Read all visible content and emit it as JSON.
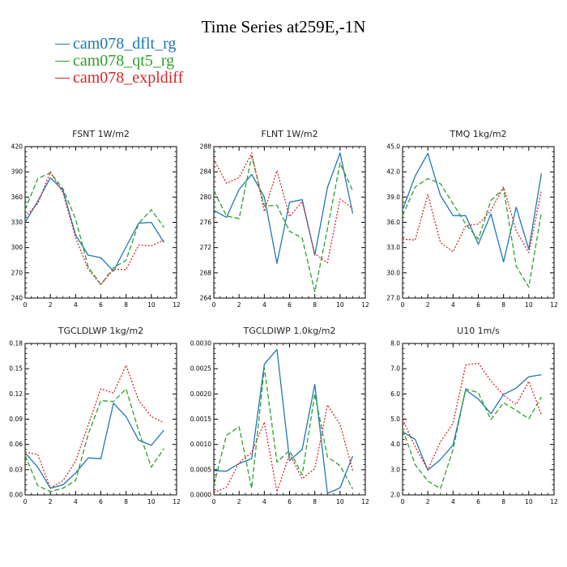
{
  "title": "Time Series at259E,-1N",
  "legend": [
    {
      "label": "cam078_dflt_rg",
      "color": "#1f77b4",
      "dash": "none"
    },
    {
      "label": "cam078_qt5_rg",
      "color": "#2ca02c",
      "dash": "dashed"
    },
    {
      "label": "cam078_expldiff",
      "color": "#d62728",
      "dash": "dotted"
    }
  ],
  "chart_data": [
    {
      "type": "line",
      "title": "FSNT   1W/m2",
      "x": [
        0,
        1,
        2,
        3,
        4,
        5,
        6,
        7,
        8,
        9,
        10,
        11
      ],
      "xlim": [
        0,
        12
      ],
      "xticks": [
        "0",
        "2",
        "4",
        "6",
        "8",
        "10",
        "12"
      ],
      "ylim": [
        240,
        420
      ],
      "yticks": [
        "240",
        "270",
        "300",
        "330",
        "360",
        "390",
        "420"
      ],
      "series": [
        {
          "name": "cam078_dflt_rg",
          "values": [
            330,
            355,
            383,
            368,
            315,
            291,
            288,
            272,
            301,
            329,
            330,
            306
          ]
        },
        {
          "name": "cam078_qt5_rg",
          "values": [
            345,
            382,
            389,
            370,
            334,
            277,
            256,
            276,
            285,
            329,
            345,
            324
          ]
        },
        {
          "name": "cam078_expldiff",
          "values": [
            337,
            352,
            390,
            365,
            312,
            274,
            256,
            274,
            274,
            303,
            302,
            309
          ]
        }
      ]
    },
    {
      "type": "line",
      "title": "FLNT   1W/m2",
      "x": [
        0,
        1,
        2,
        3,
        4,
        5,
        6,
        7,
        8,
        9,
        10,
        11
      ],
      "xlim": [
        0,
        12
      ],
      "xticks": [
        "0",
        "2",
        "4",
        "6",
        "8",
        "10",
        "12"
      ],
      "ylim": [
        264,
        288
      ],
      "yticks": [
        "264",
        "268",
        "272",
        "276",
        "280",
        "284",
        "288"
      ],
      "series": [
        {
          "name": "cam078_dflt_rg",
          "values": [
            277.9,
            276.8,
            281.2,
            283.6,
            280.0,
            269.5,
            279.2,
            279.6,
            270.8,
            281.5,
            287.0,
            277.4
          ]
        },
        {
          "name": "cam078_qt5_rg",
          "values": [
            281.0,
            277.0,
            276.6,
            286.5,
            278.6,
            278.7,
            274.6,
            273.5,
            265.0,
            275.0,
            285.4,
            281.0
          ]
        },
        {
          "name": "cam078_expldiff",
          "values": [
            286.0,
            282.2,
            283.1,
            287.0,
            277.7,
            284.2,
            276.9,
            279.3,
            271.0,
            269.6,
            279.7,
            278.2
          ]
        }
      ]
    },
    {
      "type": "line",
      "title": "TMQ   1kg/m2",
      "x": [
        0,
        1,
        2,
        3,
        4,
        5,
        6,
        7,
        8,
        9,
        10,
        11
      ],
      "xlim": [
        0,
        12
      ],
      "xticks": [
        "0",
        "2",
        "4",
        "6",
        "8",
        "10",
        "12"
      ],
      "ylim": [
        27.0,
        45.0
      ],
      "yticks": [
        "27.0",
        "30.0",
        "33.0",
        "36.0",
        "39.0",
        "42.0",
        "45.0"
      ],
      "series": [
        {
          "name": "cam078_dflt_rg",
          "values": [
            37.5,
            41.5,
            44.2,
            39.2,
            36.8,
            36.8,
            33.4,
            37.0,
            31.3,
            37.8,
            32.8,
            41.8
          ]
        },
        {
          "name": "cam078_qt5_rg",
          "values": [
            36.8,
            40.2,
            41.2,
            40.6,
            38.2,
            35.8,
            34.0,
            38.6,
            40.0,
            30.8,
            28.3,
            37.2
          ]
        },
        {
          "name": "cam078_expldiff",
          "values": [
            34.0,
            33.9,
            39.3,
            33.6,
            32.5,
            35.6,
            35.8,
            37.4,
            40.2,
            35.0,
            32.4,
            39.8
          ]
        }
      ]
    },
    {
      "type": "line",
      "title": "TGCLDLWP   1kg/m2",
      "x": [
        0,
        1,
        2,
        3,
        4,
        5,
        6,
        7,
        8,
        9,
        10,
        11
      ],
      "xlim": [
        0,
        12
      ],
      "xticks": [
        "0",
        "2",
        "4",
        "6",
        "8",
        "10",
        "12"
      ],
      "ylim": [
        0.0,
        0.18
      ],
      "yticks": [
        "0.00",
        "0.03",
        "0.06",
        "0.09",
        "0.12",
        "0.15",
        "0.18"
      ],
      "series": [
        {
          "name": "cam078_dflt_rg",
          "values": [
            0.05,
            0.033,
            0.008,
            0.012,
            0.026,
            0.044,
            0.043,
            0.109,
            0.093,
            0.065,
            0.059,
            0.077
          ]
        },
        {
          "name": "cam078_qt5_rg",
          "values": [
            0.047,
            0.011,
            0.004,
            0.008,
            0.017,
            0.072,
            0.112,
            0.111,
            0.126,
            0.076,
            0.033,
            0.055
          ]
        },
        {
          "name": "cam078_expldiff",
          "values": [
            0.051,
            0.048,
            0.008,
            0.017,
            0.04,
            0.083,
            0.126,
            0.121,
            0.154,
            0.112,
            0.093,
            0.086
          ]
        }
      ]
    },
    {
      "type": "line",
      "title": "TGCLDIWP   1.0kg/m2",
      "x": [
        0,
        1,
        2,
        3,
        4,
        5,
        6,
        7,
        8,
        9,
        10,
        11
      ],
      "xlim": [
        0,
        12
      ],
      "xticks": [
        "0",
        "2",
        "4",
        "6",
        "8",
        "10",
        "12"
      ],
      "ylim": [
        0.0,
        0.003
      ],
      "yticks": [
        "0.0000",
        "0.0005",
        "0.0010",
        "0.0015",
        "0.0020",
        "0.0025",
        "0.0030"
      ],
      "series": [
        {
          "name": "cam078_dflt_rg",
          "values": [
            0.00048,
            0.00047,
            0.00062,
            0.00072,
            0.00259,
            0.00288,
            0.00068,
            0.0009,
            0.00219,
            3e-05,
            0.00014,
            0.00077
          ]
        },
        {
          "name": "cam078_qt5_rg",
          "values": [
            0.0002,
            0.00118,
            0.00135,
            0.00013,
            0.00252,
            0.00065,
            0.00088,
            0.0004,
            0.002,
            0.00075,
            0.00058,
            0.00012
          ]
        },
        {
          "name": "cam078_expldiff",
          "values": [
            5e-05,
            0.00015,
            0.00064,
            0.00084,
            0.00144,
            6e-05,
            0.00081,
            0.00032,
            0.00052,
            0.00178,
            0.0014,
            0.00048
          ]
        }
      ]
    },
    {
      "type": "line",
      "title": "U10   1m/s",
      "x": [
        0,
        1,
        2,
        3,
        4,
        5,
        6,
        7,
        8,
        9,
        10,
        11
      ],
      "xlim": [
        0,
        12
      ],
      "xticks": [
        "0",
        "2",
        "4",
        "6",
        "8",
        "10",
        "12"
      ],
      "ylim": [
        2.0,
        8.0
      ],
      "yticks": [
        "2.0",
        "3.0",
        "4.0",
        "5.0",
        "6.0",
        "7.0",
        "8.0"
      ],
      "series": [
        {
          "name": "cam078_dflt_rg",
          "values": [
            4.5,
            4.2,
            2.98,
            3.4,
            3.98,
            6.16,
            5.8,
            5.22,
            5.98,
            6.23,
            6.68,
            6.76
          ]
        },
        {
          "name": "cam078_qt5_rg",
          "values": [
            4.6,
            3.2,
            2.55,
            2.25,
            3.8,
            6.2,
            6.05,
            4.98,
            5.65,
            5.35,
            5.02,
            5.88
          ]
        },
        {
          "name": "cam078_expldiff",
          "values": [
            5.0,
            3.9,
            3.0,
            4.1,
            4.84,
            7.14,
            7.22,
            6.51,
            5.95,
            5.58,
            6.5,
            5.18
          ]
        }
      ]
    }
  ]
}
